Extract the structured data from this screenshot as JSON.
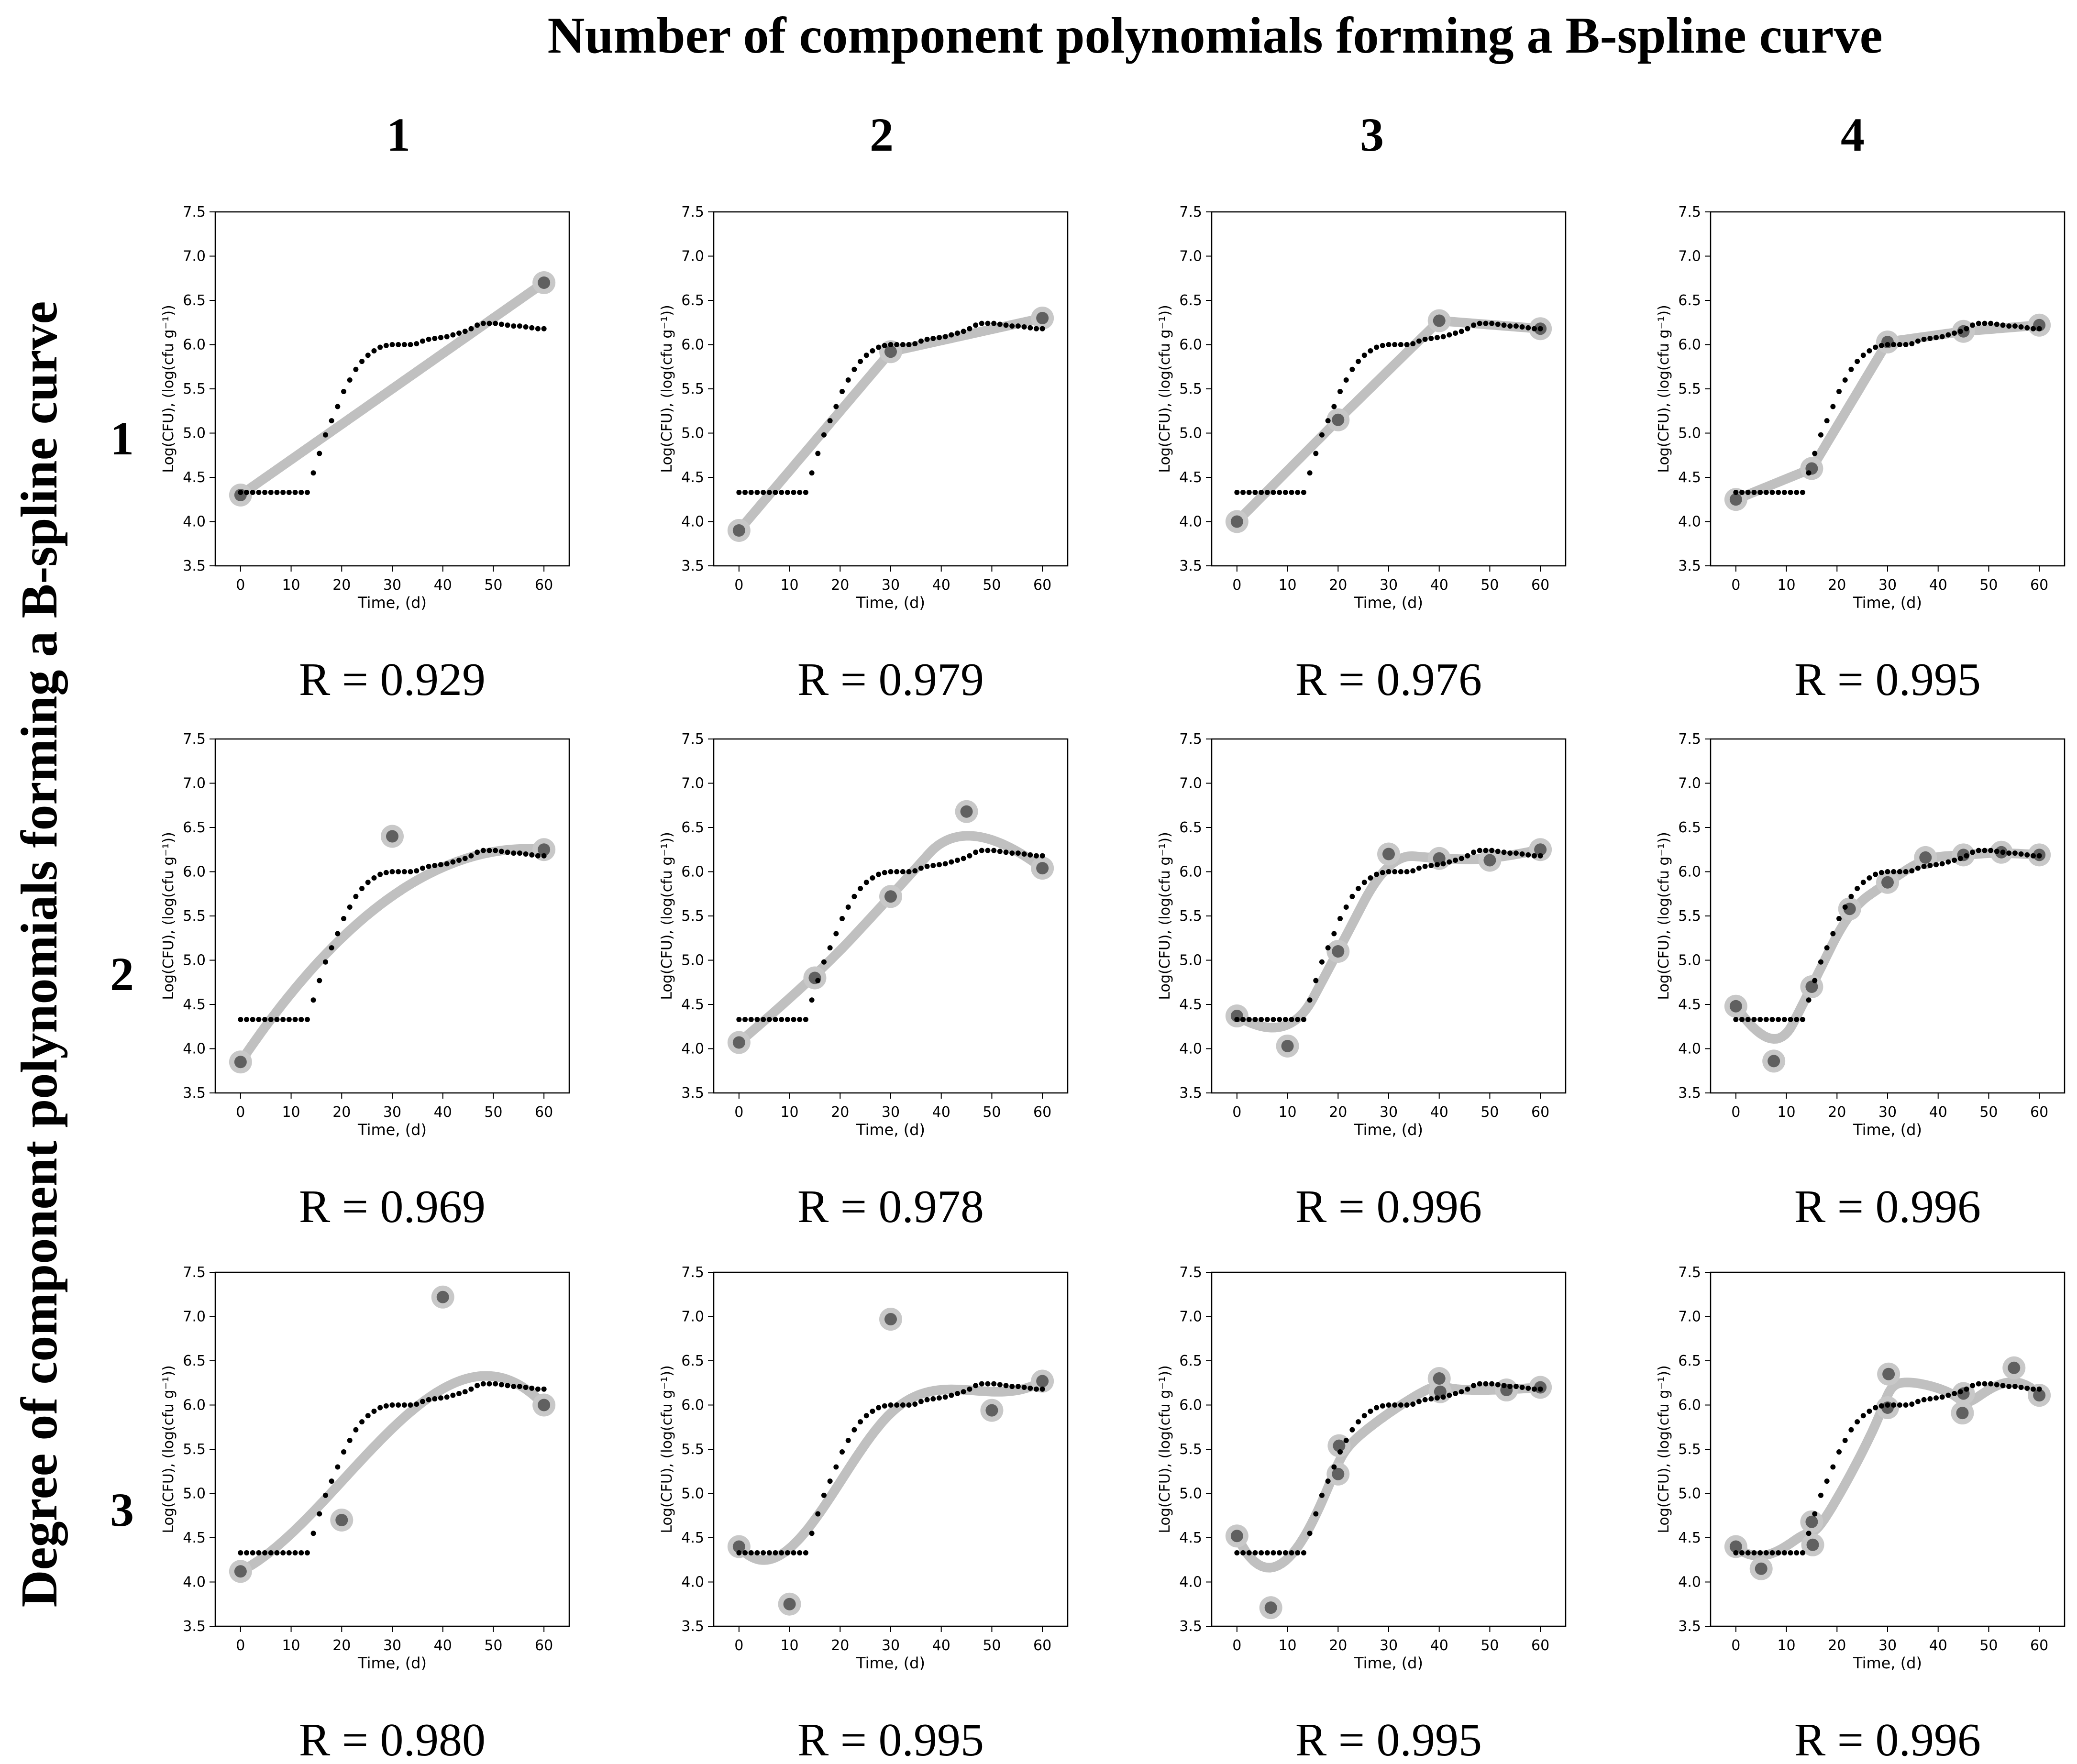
{
  "figure": {
    "col_header_title": "Number of component polynomials forming a B-spline curve",
    "row_header_title": "Degree of component polynomials forming a B-spline curve",
    "col_labels": [
      "1",
      "2",
      "3",
      "4"
    ],
    "row_labels": [
      "1",
      "2",
      "3"
    ]
  },
  "colors": {
    "spline": "#c0c0c0",
    "control_halo": "#c8c8c8",
    "control_point": "#606060",
    "data_points": "#000000",
    "axes": "#000000"
  },
  "chart_data": [
    {
      "type": "line",
      "row": 1,
      "col": 1,
      "r_label": "R = 0.929",
      "xlabel": "Time, (d)",
      "ylabel": "Log(CFU), (log(cfu g⁻¹))",
      "xlim": [
        -5,
        65
      ],
      "ylim": [
        3.5,
        7.5
      ],
      "xticks": [
        0,
        10,
        20,
        30,
        40,
        50,
        60
      ],
      "yticks": [
        3.5,
        4.0,
        4.5,
        5.0,
        5.5,
        6.0,
        6.5,
        7.0,
        7.5
      ],
      "spline": {
        "degree": 1,
        "control_points": [
          [
            0,
            4.3
          ],
          [
            60,
            6.7
          ]
        ]
      }
    },
    {
      "type": "line",
      "row": 1,
      "col": 2,
      "r_label": "R = 0.979",
      "xlabel": "Time, (d)",
      "ylabel": "Log(CFU), (log(cfu g⁻¹))",
      "xlim": [
        -5,
        65
      ],
      "ylim": [
        3.5,
        7.5
      ],
      "xticks": [
        0,
        10,
        20,
        30,
        40,
        50,
        60
      ],
      "yticks": [
        3.5,
        4.0,
        4.5,
        5.0,
        5.5,
        6.0,
        6.5,
        7.0,
        7.5
      ],
      "spline": {
        "degree": 1,
        "control_points": [
          [
            0,
            3.9
          ],
          [
            30,
            5.92
          ],
          [
            60,
            6.3
          ]
        ]
      }
    },
    {
      "type": "line",
      "row": 1,
      "col": 3,
      "r_label": "R = 0.976",
      "xlabel": "Time, (d)",
      "ylabel": "Log(CFU), (log(cfu g⁻¹))",
      "xlim": [
        -5,
        65
      ],
      "ylim": [
        3.5,
        7.5
      ],
      "xticks": [
        0,
        10,
        20,
        30,
        40,
        50,
        60
      ],
      "yticks": [
        3.5,
        4.0,
        4.5,
        5.0,
        5.5,
        6.0,
        6.5,
        7.0,
        7.5
      ],
      "spline": {
        "degree": 1,
        "control_points": [
          [
            0,
            4.0
          ],
          [
            20,
            5.15
          ],
          [
            40,
            6.27
          ],
          [
            60,
            6.18
          ]
        ]
      }
    },
    {
      "type": "line",
      "row": 1,
      "col": 4,
      "r_label": "R = 0.995",
      "xlabel": "Time, (d)",
      "ylabel": "Log(CFU), (log(cfu g⁻¹))",
      "xlim": [
        -5,
        65
      ],
      "ylim": [
        3.5,
        7.5
      ],
      "xticks": [
        0,
        10,
        20,
        30,
        40,
        50,
        60
      ],
      "yticks": [
        3.5,
        4.0,
        4.5,
        5.0,
        5.5,
        6.0,
        6.5,
        7.0,
        7.5
      ],
      "spline": {
        "degree": 1,
        "control_points": [
          [
            0,
            4.25
          ],
          [
            15,
            4.6
          ],
          [
            30,
            6.03
          ],
          [
            45,
            6.15
          ],
          [
            60,
            6.22
          ]
        ]
      }
    },
    {
      "type": "line",
      "row": 2,
      "col": 1,
      "r_label": "R = 0.969",
      "xlabel": "Time, (d)",
      "ylabel": "Log(CFU), (log(cfu g⁻¹))",
      "xlim": [
        -5,
        65
      ],
      "ylim": [
        3.5,
        7.5
      ],
      "xticks": [
        0,
        10,
        20,
        30,
        40,
        50,
        60
      ],
      "yticks": [
        3.5,
        4.0,
        4.5,
        5.0,
        5.5,
        6.0,
        6.5,
        7.0,
        7.5
      ],
      "spline": {
        "degree": 2,
        "control_points": [
          [
            0,
            3.85
          ],
          [
            30,
            6.4
          ],
          [
            60,
            6.25
          ]
        ]
      }
    },
    {
      "type": "line",
      "row": 2,
      "col": 2,
      "r_label": "R = 0.978",
      "xlabel": "Time, (d)",
      "ylabel": "Log(CFU), (log(cfu g⁻¹))",
      "xlim": [
        -5,
        65
      ],
      "ylim": [
        3.5,
        7.5
      ],
      "xticks": [
        0,
        10,
        20,
        30,
        40,
        50,
        60
      ],
      "yticks": [
        3.5,
        4.0,
        4.5,
        5.0,
        5.5,
        6.0,
        6.5,
        7.0,
        7.5
      ],
      "spline": {
        "degree": 2,
        "control_points": [
          [
            0,
            4.07
          ],
          [
            15,
            4.8
          ],
          [
            30,
            5.72
          ],
          [
            45,
            6.68
          ],
          [
            60,
            6.04
          ]
        ]
      }
    },
    {
      "type": "line",
      "row": 2,
      "col": 3,
      "r_label": "R = 0.996",
      "xlabel": "Time, (d)",
      "ylabel": "Log(CFU), (log(cfu g⁻¹))",
      "xlim": [
        -5,
        65
      ],
      "ylim": [
        3.5,
        7.5
      ],
      "xticks": [
        0,
        10,
        20,
        30,
        40,
        50,
        60
      ],
      "yticks": [
        3.5,
        4.0,
        4.5,
        5.0,
        5.5,
        6.0,
        6.5,
        7.0,
        7.5
      ],
      "spline": {
        "degree": 2,
        "control_points": [
          [
            0,
            4.37
          ],
          [
            10,
            4.03
          ],
          [
            20,
            5.1
          ],
          [
            30,
            6.2
          ],
          [
            40,
            6.15
          ],
          [
            50,
            6.13
          ],
          [
            60,
            6.25
          ]
        ]
      }
    },
    {
      "type": "line",
      "row": 2,
      "col": 4,
      "r_label": "R = 0.996",
      "xlabel": "Time, (d)",
      "ylabel": "Log(CFU), (log(cfu g⁻¹))",
      "xlim": [
        -5,
        65
      ],
      "ylim": [
        3.5,
        7.5
      ],
      "xticks": [
        0,
        10,
        20,
        30,
        40,
        50,
        60
      ],
      "yticks": [
        3.5,
        4.0,
        4.5,
        5.0,
        5.5,
        6.0,
        6.5,
        7.0,
        7.5
      ],
      "spline": {
        "degree": 2,
        "control_points": [
          [
            0,
            4.48
          ],
          [
            7.5,
            3.86
          ],
          [
            15,
            4.7
          ],
          [
            22.5,
            5.58
          ],
          [
            30,
            5.88
          ],
          [
            37.5,
            6.16
          ],
          [
            45,
            6.19
          ],
          [
            52.5,
            6.22
          ],
          [
            60,
            6.19
          ]
        ]
      }
    },
    {
      "type": "line",
      "row": 3,
      "col": 1,
      "r_label": "R = 0.980",
      "xlabel": "Time, (d)",
      "ylabel": "Log(CFU), (log(cfu g⁻¹))",
      "xlim": [
        -5,
        65
      ],
      "ylim": [
        3.5,
        7.5
      ],
      "xticks": [
        0,
        10,
        20,
        30,
        40,
        50,
        60
      ],
      "yticks": [
        3.5,
        4.0,
        4.5,
        5.0,
        5.5,
        6.0,
        6.5,
        7.0,
        7.5
      ],
      "spline": {
        "degree": 3,
        "control_points": [
          [
            0,
            4.12
          ],
          [
            20,
            4.7
          ],
          [
            40,
            7.22
          ],
          [
            60,
            6.0
          ]
        ]
      }
    },
    {
      "type": "line",
      "row": 3,
      "col": 2,
      "r_label": "R = 0.995",
      "xlabel": "Time, (d)",
      "ylabel": "Log(CFU), (log(cfu g⁻¹))",
      "xlim": [
        -5,
        65
      ],
      "ylim": [
        3.5,
        7.5
      ],
      "xticks": [
        0,
        10,
        20,
        30,
        40,
        50,
        60
      ],
      "yticks": [
        3.5,
        4.0,
        4.5,
        5.0,
        5.5,
        6.0,
        6.5,
        7.0,
        7.5
      ],
      "spline": {
        "degree": 3,
        "control_points": [
          [
            0,
            4.4
          ],
          [
            10,
            3.75
          ],
          [
            30,
            6.97
          ],
          [
            50,
            5.94
          ],
          [
            60,
            6.27
          ]
        ]
      }
    },
    {
      "type": "line",
      "row": 3,
      "col": 3,
      "r_label": "R = 0.995",
      "xlabel": "Time, (d)",
      "ylabel": "Log(CFU), (log(cfu g⁻¹))",
      "xlim": [
        -5,
        65
      ],
      "ylim": [
        3.5,
        7.5
      ],
      "xticks": [
        0,
        10,
        20,
        30,
        40,
        50,
        60
      ],
      "yticks": [
        3.5,
        4.0,
        4.5,
        5.0,
        5.5,
        6.0,
        6.5,
        7.0,
        7.5
      ],
      "spline": {
        "degree": 3,
        "control_points": [
          [
            0,
            4.52
          ],
          [
            6.7,
            3.71
          ],
          [
            20,
            5.22
          ],
          [
            20.2,
            5.54
          ],
          [
            40,
            6.3
          ],
          [
            40.2,
            6.15
          ],
          [
            53.3,
            6.17
          ],
          [
            60,
            6.2
          ]
        ]
      }
    },
    {
      "type": "line",
      "row": 3,
      "col": 4,
      "r_label": "R = 0.996",
      "xlabel": "Time, (d)",
      "ylabel": "Log(CFU), (log(cfu g⁻¹))",
      "xlim": [
        -5,
        65
      ],
      "ylim": [
        3.5,
        7.5
      ],
      "xticks": [
        0,
        10,
        20,
        30,
        40,
        50,
        60
      ],
      "yticks": [
        3.5,
        4.0,
        4.5,
        5.0,
        5.5,
        6.0,
        6.5,
        7.0,
        7.5
      ],
      "spline": {
        "degree": 3,
        "control_points": [
          [
            0,
            4.4
          ],
          [
            5,
            4.15
          ],
          [
            15,
            4.68
          ],
          [
            15.2,
            4.42
          ],
          [
            30,
            5.97
          ],
          [
            30.2,
            6.35
          ],
          [
            45,
            6.13
          ],
          [
            44.8,
            5.91
          ],
          [
            55,
            6.42
          ],
          [
            60,
            6.11
          ]
        ]
      }
    }
  ],
  "data_series": {
    "name": "",
    "x": [
      0,
      1.2,
      2.4,
      3.6,
      4.8,
      6,
      7.2,
      8.4,
      9.6,
      10.8,
      12,
      13.2,
      14.4,
      15.6,
      16.8,
      18,
      19.2,
      20.4,
      21.6,
      22.8,
      24,
      25.2,
      26.4,
      27.6,
      28.8,
      30,
      31.2,
      32.4,
      33.6,
      34.8,
      36,
      37.2,
      38.4,
      39.6,
      40.8,
      42,
      43.2,
      44.4,
      45.6,
      46.8,
      48,
      49.2,
      50.4,
      51.6,
      52.8,
      54,
      55.2,
      56.4,
      57.6,
      58.8,
      60
    ],
    "y": [
      4.33,
      4.33,
      4.33,
      4.33,
      4.33,
      4.33,
      4.33,
      4.33,
      4.33,
      4.33,
      4.33,
      4.33,
      4.55,
      4.77,
      4.98,
      5.14,
      5.3,
      5.47,
      5.6,
      5.72,
      5.81,
      5.88,
      5.93,
      5.97,
      5.99,
      6.0,
      6.0,
      6.0,
      6.0,
      6.01,
      6.04,
      6.06,
      6.07,
      6.08,
      6.09,
      6.11,
      6.13,
      6.15,
      6.18,
      6.22,
      6.24,
      6.24,
      6.24,
      6.23,
      6.22,
      6.21,
      6.21,
      6.2,
      6.19,
      6.18,
      6.18
    ]
  }
}
